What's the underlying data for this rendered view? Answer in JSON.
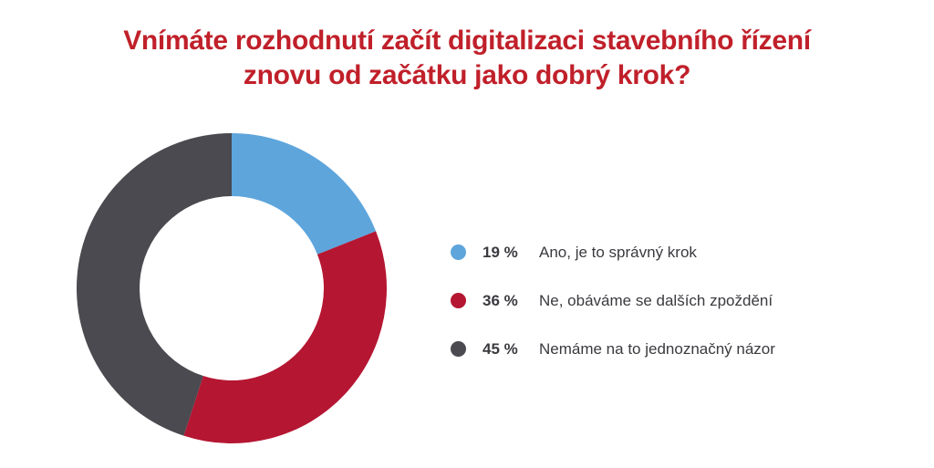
{
  "chart_data": {
    "type": "pie",
    "title_lines": [
      "Vnímáte rozhodnutí začít digitalizaci stavebního řízení",
      "znovu od začátku jako dobrý krok?"
    ],
    "slices": [
      {
        "label": "Ano, je to správný krok",
        "value": 19,
        "value_label": "19 %",
        "color": "#5ea5dc"
      },
      {
        "label": "Ne, obáváme se dalších zpoždění",
        "value": 36,
        "value_label": "36 %",
        "color": "#b51632"
      },
      {
        "label": "Nemáme na to jednoznačný názor",
        "value": 45,
        "value_label": "45 %",
        "color": "#4a4a50"
      }
    ],
    "donut": true,
    "start": "top",
    "direction": "clockwise",
    "legend_position": "right"
  }
}
